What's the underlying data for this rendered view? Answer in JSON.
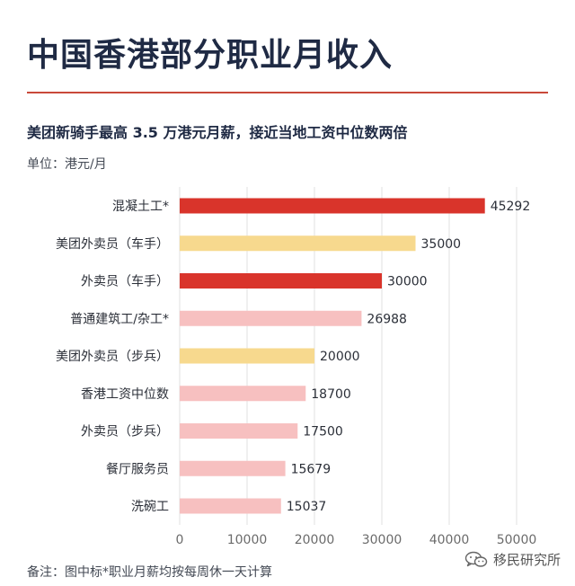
{
  "header": {
    "title": "中国香港部分职业月收入",
    "subtitle": "美团新骑手最高 3.5 万港元月薪，接近当地工资中位数两倍",
    "unit": "单位：港元/月"
  },
  "footnote": "备注：图中标*职业月薪均按每周休一天计算",
  "watermark": {
    "text": "移民研究所",
    "icon": "wechat-icon"
  },
  "colors": {
    "title": "#1f2a44",
    "divider": "#c9493a",
    "red": "#d9342b",
    "yellow": "#f7d98e",
    "pink": "#f7c0c0",
    "grid": "#e2e2e2",
    "axis_text": "#6b6b6b"
  },
  "chart_data": {
    "type": "bar",
    "orientation": "horizontal",
    "categories": [
      "混凝土工*",
      "美团外卖员（车手）",
      "外卖员（车手）",
      "普通建筑工/杂工*",
      "美团外卖员（步兵）",
      "香港工资中位数",
      "外卖员（步兵）",
      "餐厅服务员",
      "洗碗工"
    ],
    "values": [
      45292,
      35000,
      30000,
      26988,
      20000,
      18700,
      17500,
      15679,
      15037
    ],
    "bar_colors": [
      "red",
      "yellow",
      "red",
      "pink",
      "yellow",
      "pink",
      "pink",
      "pink",
      "pink"
    ],
    "data_labels": [
      "45292",
      "35000",
      "30000",
      "26988",
      "20000",
      "18700",
      "17500",
      "15679",
      "15037"
    ],
    "xlim": [
      0,
      50000
    ],
    "xticks": [
      0,
      10000,
      20000,
      30000,
      40000,
      50000
    ],
    "xtick_labels": [
      "0",
      "10000",
      "20000",
      "30000",
      "40000",
      "50000"
    ],
    "grid": true,
    "legend": false
  }
}
